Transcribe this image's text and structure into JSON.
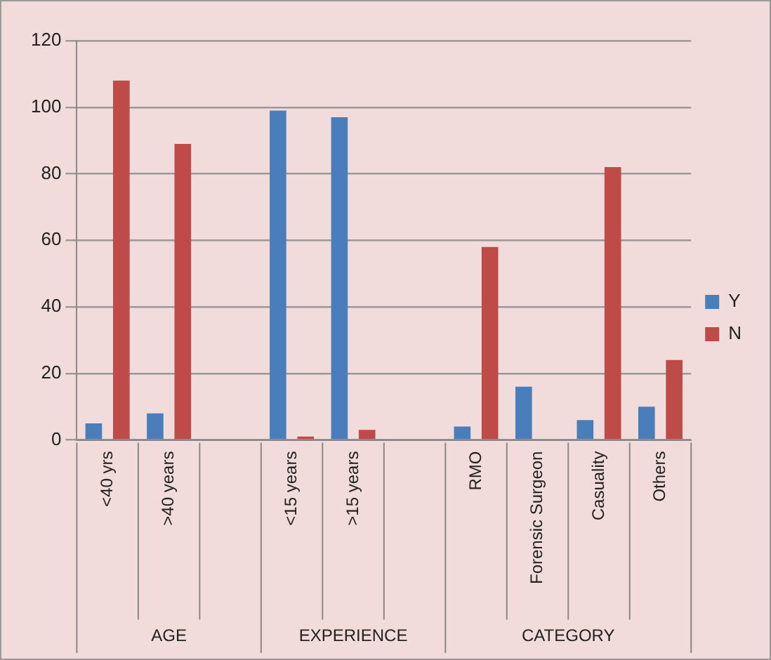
{
  "chart_data": {
    "type": "bar",
    "categories": [
      "<40 yrs",
      ">40 years",
      null,
      "<15 years",
      ">15 years",
      null,
      "RMO",
      "Forensic Surgeon",
      "Casuality",
      "Others"
    ],
    "series": [
      {
        "name": "Y",
        "color": "#4a7ebb",
        "values": [
          5,
          8,
          null,
          99,
          97,
          null,
          4,
          16,
          6,
          10
        ]
      },
      {
        "name": "N",
        "color": "#be4b48",
        "values": [
          108,
          89,
          null,
          1,
          3,
          null,
          58,
          0,
          82,
          24
        ]
      }
    ],
    "annotations": [
      "AGE",
      "EXPERIENCE",
      "CATEGORY"
    ],
    "ylim": [
      0,
      120
    ],
    "yticks": [
      0,
      20,
      40,
      60,
      80,
      100,
      120
    ],
    "grid": "y",
    "legend": "right"
  }
}
